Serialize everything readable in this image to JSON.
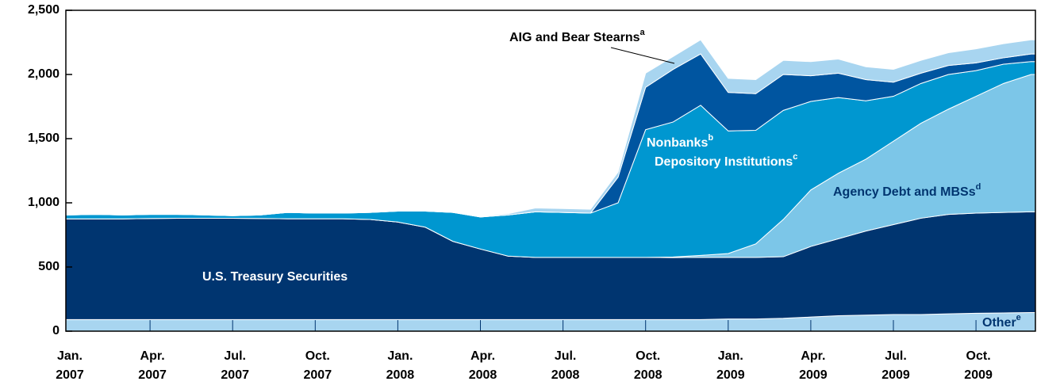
{
  "chart_data": {
    "type": "stacked_area",
    "categories": [
      "Jan. 2007",
      null,
      null,
      "Apr. 2007",
      null,
      null,
      "Jul. 2007",
      null,
      null,
      "Oct. 2007",
      null,
      null,
      "Jan. 2008",
      null,
      null,
      "Apr. 2008",
      null,
      null,
      "Jul. 2008",
      null,
      null,
      "Oct. 2008",
      null,
      null,
      "Jan. 2009",
      null,
      null,
      "Apr. 2009",
      null,
      null,
      "Jul. 2009",
      null,
      null,
      "Oct. 2009",
      null,
      null
    ],
    "ylim": [
      0,
      2500
    ],
    "yticks": [
      0,
      500,
      {
        "value": 1000,
        "label": "1,000"
      },
      {
        "value": 1500,
        "label": "1,500"
      },
      {
        "value": 2000,
        "label": "2,000"
      },
      {
        "value": 2500,
        "label": "2,500"
      }
    ],
    "series": [
      {
        "name": "Other",
        "note": "e",
        "color": "#a8d5f0",
        "values": [
          90,
          90,
          90,
          90,
          90,
          90,
          90,
          90,
          90,
          90,
          90,
          90,
          90,
          90,
          90,
          90,
          90,
          90,
          90,
          90,
          90,
          90,
          90,
          90,
          95,
          95,
          100,
          110,
          120,
          125,
          130,
          130,
          135,
          140,
          142,
          145
        ]
      },
      {
        "name": "U.S. Treasury Securities",
        "color": "#003570",
        "values": [
          785,
          785,
          785,
          788,
          790,
          790,
          790,
          788,
          786,
          786,
          786,
          780,
          760,
          720,
          610,
          550,
          495,
          485,
          485,
          485,
          485,
          485,
          483,
          485,
          480,
          480,
          480,
          550,
          600,
          655,
          700,
          750,
          775,
          780,
          783,
          785
        ]
      },
      {
        "name": "Agency Debt and MBSs",
        "note": "d",
        "color": "#7cc6e8",
        "values": [
          0,
          0,
          0,
          0,
          0,
          0,
          0,
          0,
          0,
          0,
          0,
          0,
          0,
          0,
          0,
          0,
          0,
          0,
          0,
          0,
          0,
          0,
          5,
          15,
          30,
          105,
          290,
          440,
          510,
          560,
          650,
          740,
          820,
          910,
          1005,
          1070
        ]
      },
      {
        "name": "Depository Institutions",
        "note": "c",
        "color": "#0097d0",
        "values": [
          30,
          35,
          30,
          32,
          30,
          25,
          20,
          27,
          49,
          44,
          44,
          55,
          85,
          125,
          225,
          250,
          320,
          355,
          350,
          345,
          425,
          995,
          1052,
          1170,
          955,
          885,
          850,
          690,
          590,
          455,
          350,
          310,
          270,
          200,
          150,
          100
        ]
      },
      {
        "name": "Nonbanks",
        "note": "b",
        "color": "#0055a0",
        "values": [
          0,
          0,
          0,
          0,
          0,
          0,
          0,
          0,
          0,
          0,
          0,
          0,
          0,
          0,
          0,
          0,
          0,
          0,
          0,
          0,
          200,
          330,
          410,
          400,
          300,
          285,
          280,
          200,
          190,
          165,
          110,
          80,
          70,
          60,
          50,
          60
        ]
      },
      {
        "name": "AIG and Bear Stearns",
        "note": "a",
        "color": "#a8d5f0",
        "values": [
          0,
          0,
          0,
          0,
          0,
          0,
          0,
          0,
          0,
          0,
          0,
          0,
          0,
          0,
          0,
          5,
          10,
          30,
          30,
          30,
          40,
          110,
          100,
          110,
          110,
          110,
          110,
          110,
          110,
          100,
          100,
          100,
          100,
          110,
          110,
          110
        ]
      }
    ]
  }
}
